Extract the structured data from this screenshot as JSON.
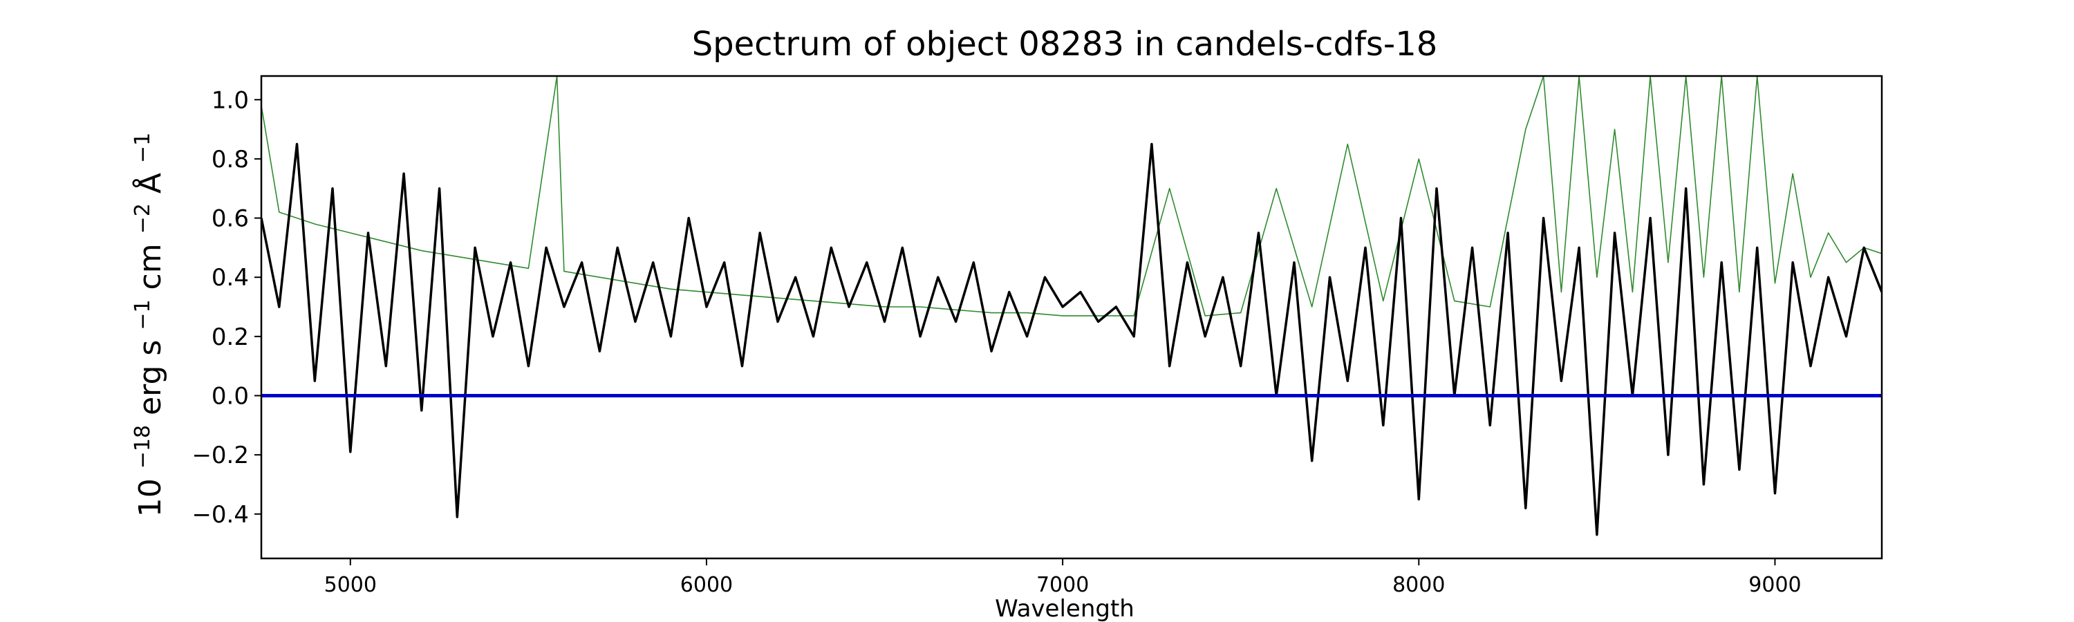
{
  "chart_data": {
    "type": "line",
    "title": "Spectrum of object 08283 in candels-cdfs-18",
    "xlabel": "Wavelength",
    "ylabel_parts": {
      "base": "10",
      "exp1": "−18",
      "mid1": " erg s",
      "exp2": "−1",
      "mid2": " cm",
      "exp3": "−2",
      "mid3": " Å",
      "exp4": "−1"
    },
    "xlim": [
      4750,
      9300
    ],
    "ylim": [
      -0.55,
      1.08
    ],
    "xticks": [
      5000,
      6000,
      7000,
      8000,
      9000
    ],
    "yticks": [
      -0.4,
      -0.2,
      0.0,
      0.2,
      0.4,
      0.6,
      0.8,
      1.0
    ],
    "grid": false,
    "series": [
      {
        "role": "flux",
        "color": "#000000",
        "x": [
          4750,
          4800,
          4850,
          4900,
          4950,
          5000,
          5050,
          5100,
          5150,
          5200,
          5250,
          5300,
          5350,
          5400,
          5450,
          5500,
          5550,
          5600,
          5650,
          5700,
          5750,
          5800,
          5850,
          5900,
          5950,
          6000,
          6050,
          6100,
          6150,
          6200,
          6250,
          6300,
          6350,
          6400,
          6450,
          6500,
          6550,
          6600,
          6650,
          6700,
          6750,
          6800,
          6850,
          6900,
          6950,
          7000,
          7050,
          7100,
          7150,
          7200,
          7250,
          7300,
          7350,
          7400,
          7450,
          7500,
          7550,
          7600,
          7650,
          7700,
          7750,
          7800,
          7850,
          7900,
          7950,
          8000,
          8050,
          8100,
          8150,
          8200,
          8250,
          8300,
          8350,
          8400,
          8450,
          8500,
          8550,
          8600,
          8650,
          8700,
          8750,
          8800,
          8850,
          8900,
          8950,
          9000,
          9050,
          9100,
          9150,
          9200,
          9250,
          9300
        ],
        "y": [
          0.6,
          0.3,
          0.85,
          0.05,
          0.7,
          -0.19,
          0.55,
          0.1,
          0.75,
          -0.05,
          0.7,
          -0.41,
          0.5,
          0.2,
          0.45,
          0.1,
          0.5,
          0.3,
          0.45,
          0.15,
          0.5,
          0.25,
          0.45,
          0.2,
          0.6,
          0.3,
          0.45,
          0.1,
          0.55,
          0.25,
          0.4,
          0.2,
          0.5,
          0.3,
          0.45,
          0.25,
          0.5,
          0.2,
          0.4,
          0.25,
          0.45,
          0.15,
          0.35,
          0.2,
          0.4,
          0.3,
          0.35,
          0.25,
          0.3,
          0.2,
          0.85,
          0.1,
          0.45,
          0.2,
          0.4,
          0.1,
          0.55,
          0.0,
          0.45,
          -0.22,
          0.4,
          0.05,
          0.5,
          -0.1,
          0.6,
          -0.35,
          0.7,
          0.0,
          0.5,
          -0.1,
          0.55,
          -0.38,
          0.6,
          0.05,
          0.5,
          -0.47,
          0.55,
          0.0,
          0.6,
          -0.2,
          0.7,
          -0.3,
          0.45,
          -0.25,
          0.5,
          -0.33,
          0.45,
          0.1,
          0.4,
          0.2,
          0.5,
          0.35
        ]
      },
      {
        "role": "model",
        "color": "#2e8b2e",
        "x": [
          4750,
          4800,
          4850,
          4900,
          5000,
          5100,
          5200,
          5300,
          5400,
          5500,
          5580,
          5600,
          5700,
          5800,
          5900,
          6000,
          6100,
          6200,
          6300,
          6400,
          6500,
          6600,
          6700,
          6800,
          6900,
          7000,
          7100,
          7200,
          7300,
          7400,
          7500,
          7600,
          7700,
          7800,
          7900,
          8000,
          8100,
          8200,
          8300,
          8350,
          8400,
          8450,
          8500,
          8550,
          8600,
          8650,
          8700,
          8750,
          8800,
          8850,
          8900,
          8950,
          9000,
          9050,
          9100,
          9150,
          9200,
          9250,
          9300
        ],
        "y": [
          0.98,
          0.62,
          0.6,
          0.58,
          0.55,
          0.52,
          0.49,
          0.47,
          0.45,
          0.43,
          1.08,
          0.42,
          0.4,
          0.38,
          0.36,
          0.35,
          0.34,
          0.33,
          0.32,
          0.31,
          0.3,
          0.3,
          0.29,
          0.28,
          0.28,
          0.27,
          0.27,
          0.27,
          0.7,
          0.27,
          0.28,
          0.7,
          0.3,
          0.85,
          0.32,
          0.8,
          0.32,
          0.3,
          0.9,
          1.08,
          0.35,
          1.08,
          0.4,
          0.9,
          0.35,
          1.08,
          0.45,
          1.08,
          0.4,
          1.08,
          0.35,
          1.08,
          0.38,
          0.75,
          0.4,
          0.55,
          0.45,
          0.5,
          0.48
        ]
      },
      {
        "role": "zero-line",
        "color": "#0000cc",
        "x": [
          4750,
          9300
        ],
        "y": [
          0.0,
          0.0
        ]
      }
    ]
  }
}
